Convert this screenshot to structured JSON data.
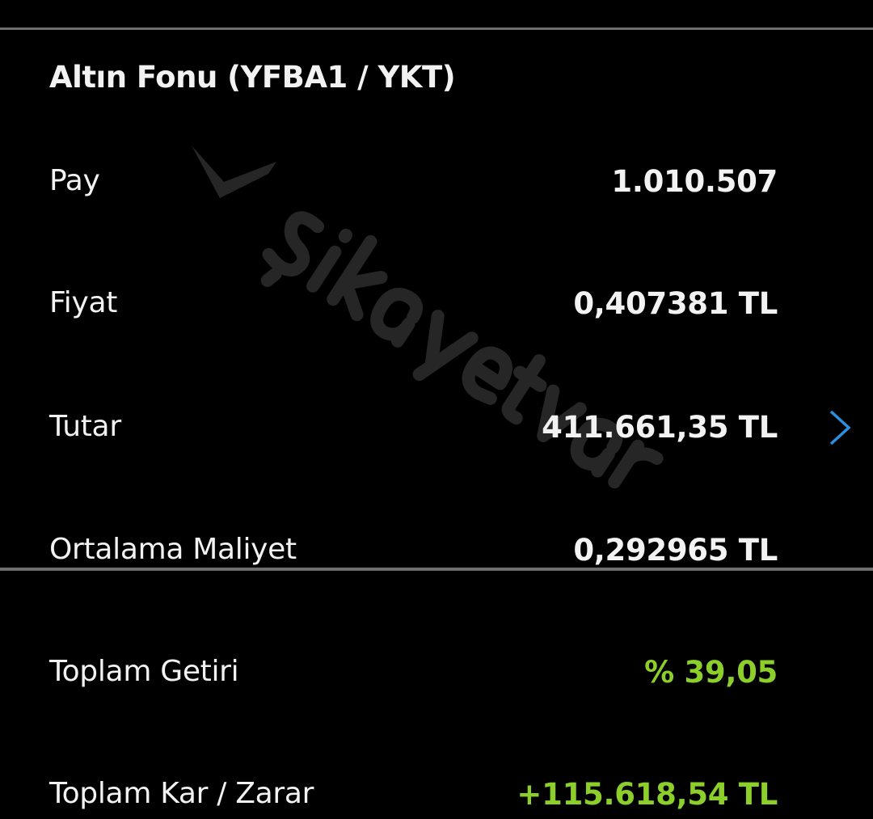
{
  "watermark": "şikayetvar",
  "title": "Altın Fonu (YFBA1 / YKT)",
  "rows": [
    {
      "label": "Pay",
      "value": "1.010.507"
    },
    {
      "label": "Fiyat",
      "value": "0,407381 TL"
    },
    {
      "label": "Tutar",
      "value": "411.661,35 TL"
    },
    {
      "label": "Ortalama Maliyet",
      "value": "0,292965 TL"
    },
    {
      "label": "Toplam Getiri",
      "value": "% 39,05"
    },
    {
      "label": "Toplam Kar / Zarar",
      "value": "+115.618,54 TL"
    }
  ],
  "colors": {
    "positive": "#8ccf2a",
    "chevron": "#2d8fe0",
    "divider": "#6e6e6e"
  },
  "icons": {
    "row_detail": "chevron-right-icon"
  }
}
